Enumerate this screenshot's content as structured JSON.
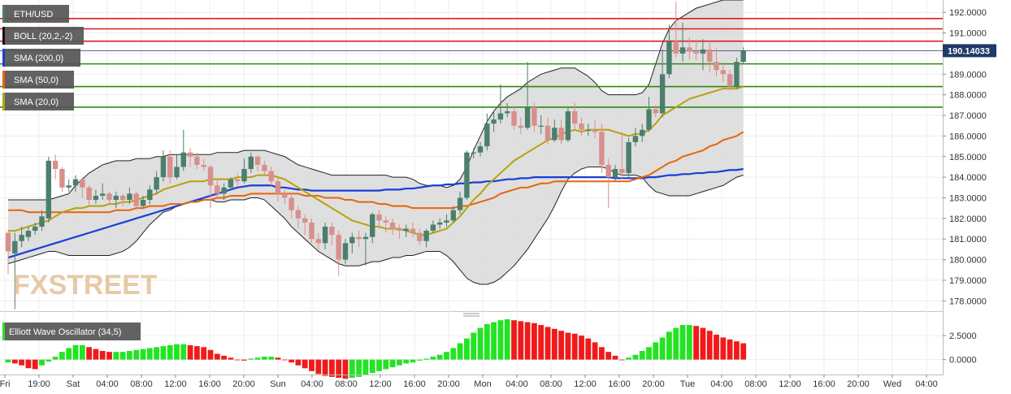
{
  "chart_data": {
    "type": "candlestick",
    "symbol": "ETH/USD",
    "legend": [
      {
        "label": "ETH/USD",
        "swatch": "#4a7f6e"
      },
      {
        "label": "BOLL (20,2,-2)",
        "swatch": "#111111"
      },
      {
        "label": "SMA (200,0)",
        "swatch": "#1a3fd6"
      },
      {
        "label": "SMA (50,0)",
        "swatch": "#e8650a"
      },
      {
        "label": "SMA (20,0)",
        "swatch": "#b8a10e"
      }
    ],
    "oscillator_label": "Elliott Wave Oscillator (34,5)",
    "price_axis": {
      "ticks": [
        "192.0000",
        "191.0000",
        "190.0000",
        "189.0000",
        "188.0000",
        "187.0000",
        "186.0000",
        "185.0000",
        "184.0000",
        "183.0000",
        "182.0000",
        "181.0000",
        "180.0000",
        "179.0000",
        "178.0000"
      ],
      "range": [
        177.5,
        192.6
      ],
      "current": "190.14033",
      "current_value": 190.14
    },
    "osc_axis": {
      "ticks": [
        "2.5000",
        "0.0000"
      ],
      "range": [
        -1.3,
        4.2
      ]
    },
    "time_labels": [
      "Fri",
      "19:00",
      "Sat",
      "04:00",
      "08:00",
      "12:00",
      "16:00",
      "20:00",
      "Sun",
      "04:00",
      "08:00",
      "12:00",
      "16:00",
      "20:00",
      "Mon",
      "04:00",
      "08:00",
      "12:00",
      "16:00",
      "20:00",
      "Tue",
      "04:00",
      "08:00",
      "12:00",
      "16:00",
      "20:00",
      "Wed",
      "04:00"
    ],
    "watermark": "FXSTREET",
    "resistance_levels": [
      191.7,
      191.2,
      190.6
    ],
    "support_levels": [
      189.5,
      188.4,
      187.4
    ],
    "colors": {
      "up": "#4a7f6e",
      "down": "#d98f8b",
      "resistance": "#e01b1b",
      "support": "#2d8a12",
      "band_fill": "#dcdcdc",
      "band_edge": "#222222",
      "sma200": "#1a3fd6",
      "sma50": "#e8650a",
      "sma20": "#b8a10e",
      "osc_pos": "#22e422",
      "osc_neg": "#f01a1a"
    },
    "candles": [
      [
        181.3,
        180.4,
        181.4,
        179.3
      ],
      [
        180.3,
        180.9,
        181.3,
        177.6
      ],
      [
        180.9,
        181.2,
        181.6,
        180.6
      ],
      [
        181.1,
        181.4,
        181.6,
        180.9
      ],
      [
        181.4,
        181.6,
        181.8,
        181.2
      ],
      [
        181.6,
        182.1,
        182.4,
        181.4
      ],
      [
        182.0,
        184.8,
        185.0,
        181.8
      ],
      [
        184.8,
        184.4,
        185.1,
        183.9
      ],
      [
        184.4,
        183.5,
        184.5,
        183.3
      ],
      [
        183.5,
        183.6,
        183.9,
        183.3
      ],
      [
        183.6,
        183.9,
        184.1,
        183.3
      ],
      [
        183.9,
        183.5,
        184.0,
        183.0
      ],
      [
        183.5,
        182.9,
        183.6,
        182.6
      ],
      [
        182.9,
        183.1,
        183.4,
        182.7
      ],
      [
        183.1,
        183.2,
        183.7,
        182.9
      ],
      [
        183.2,
        182.9,
        183.3,
        182.7
      ],
      [
        182.9,
        183.1,
        183.3,
        182.5
      ],
      [
        183.1,
        182.9,
        183.2,
        182.6
      ],
      [
        182.9,
        183.2,
        183.5,
        182.7
      ],
      [
        183.2,
        182.6,
        183.3,
        182.4
      ],
      [
        182.6,
        182.9,
        183.1,
        182.5
      ],
      [
        182.9,
        183.4,
        183.6,
        182.7
      ],
      [
        183.4,
        184.0,
        184.3,
        183.2
      ],
      [
        184.0,
        185.0,
        185.3,
        183.8
      ],
      [
        185.0,
        184.0,
        185.3,
        183.7
      ],
      [
        184.0,
        184.5,
        185.1,
        183.9
      ],
      [
        184.5,
        185.2,
        186.3,
        184.3
      ],
      [
        185.2,
        185.0,
        185.4,
        184.5
      ],
      [
        185.0,
        184.6,
        185.2,
        184.4
      ],
      [
        184.6,
        184.5,
        184.9,
        184.3
      ],
      [
        184.5,
        183.6,
        184.6,
        182.5
      ],
      [
        183.6,
        183.2,
        183.9,
        183.0
      ],
      [
        183.2,
        183.5,
        183.7,
        182.9
      ],
      [
        183.5,
        183.9,
        184.0,
        183.4
      ],
      [
        183.9,
        183.8,
        184.2,
        183.6
      ],
      [
        183.8,
        184.4,
        184.9,
        183.7
      ],
      [
        184.4,
        185.0,
        185.2,
        184.2
      ],
      [
        185.0,
        184.6,
        185.1,
        184.3
      ],
      [
        184.6,
        184.3,
        184.8,
        184.1
      ],
      [
        184.3,
        183.8,
        184.5,
        183.6
      ],
      [
        183.8,
        183.2,
        184.0,
        182.8
      ],
      [
        183.2,
        183.0,
        183.4,
        182.7
      ],
      [
        183.0,
        182.4,
        183.2,
        182.0
      ],
      [
        182.4,
        182.0,
        182.6,
        181.5
      ],
      [
        182.0,
        181.8,
        182.2,
        181.2
      ],
      [
        181.8,
        181.0,
        182.0,
        180.8
      ],
      [
        181.0,
        180.8,
        181.3,
        180.5
      ],
      [
        180.8,
        181.6,
        181.8,
        180.5
      ],
      [
        181.6,
        181.2,
        181.8,
        180.7
      ],
      [
        181.2,
        180.0,
        181.4,
        179.2
      ],
      [
        180.0,
        180.8,
        181.0,
        179.8
      ],
      [
        180.8,
        181.1,
        181.3,
        180.3
      ],
      [
        181.1,
        181.0,
        181.4,
        180.6
      ],
      [
        181.0,
        181.1,
        181.3,
        179.7
      ],
      [
        181.1,
        182.2,
        182.3,
        180.8
      ],
      [
        182.2,
        181.9,
        182.4,
        181.5
      ],
      [
        181.9,
        181.8,
        182.1,
        181.3
      ],
      [
        181.8,
        181.5,
        182.0,
        181.2
      ],
      [
        181.5,
        181.4,
        181.7,
        181.0
      ],
      [
        181.4,
        181.5,
        181.7,
        181.1
      ],
      [
        181.5,
        181.3,
        181.8,
        181.1
      ],
      [
        181.3,
        180.9,
        181.5,
        180.7
      ],
      [
        180.9,
        181.4,
        181.5,
        180.6
      ],
      [
        181.4,
        181.7,
        181.9,
        181.3
      ],
      [
        181.7,
        181.8,
        182.0,
        181.5
      ],
      [
        181.8,
        181.9,
        182.2,
        181.6
      ],
      [
        181.9,
        182.4,
        182.6,
        181.8
      ],
      [
        182.4,
        183.0,
        183.3,
        182.2
      ],
      [
        183.0,
        185.2,
        185.3,
        182.9
      ],
      [
        185.2,
        185.2,
        185.4,
        184.9
      ],
      [
        185.2,
        185.5,
        185.7,
        185.0
      ],
      [
        185.5,
        186.6,
        187.1,
        185.3
      ],
      [
        186.6,
        186.8,
        187.2,
        186.2
      ],
      [
        186.8,
        187.1,
        188.5,
        186.6
      ],
      [
        187.1,
        187.2,
        187.6,
        186.9
      ],
      [
        187.2,
        186.5,
        187.4,
        186.3
      ],
      [
        186.5,
        186.4,
        186.9,
        186.1
      ],
      [
        186.4,
        187.4,
        189.6,
        186.3
      ],
      [
        187.4,
        186.5,
        187.6,
        186.2
      ],
      [
        186.5,
        186.5,
        187.0,
        186.1
      ],
      [
        186.5,
        185.8,
        186.9,
        185.6
      ],
      [
        185.8,
        186.4,
        186.8,
        185.7
      ],
      [
        186.4,
        185.8,
        186.8,
        185.6
      ],
      [
        185.8,
        187.2,
        187.4,
        185.7
      ],
      [
        187.2,
        186.6,
        187.6,
        186.3
      ],
      [
        186.6,
        186.3,
        186.9,
        186.0
      ],
      [
        186.3,
        186.3,
        186.6,
        186.0
      ],
      [
        186.3,
        186.2,
        186.8,
        185.9
      ],
      [
        186.2,
        184.6,
        186.6,
        184.2
      ],
      [
        184.6,
        184.0,
        184.9,
        182.5
      ],
      [
        184.0,
        184.4,
        184.6,
        183.8
      ],
      [
        184.4,
        184.2,
        186.2,
        183.9
      ],
      [
        184.2,
        185.7,
        185.9,
        184.0
      ],
      [
        185.7,
        186.0,
        186.4,
        185.5
      ],
      [
        186.0,
        186.3,
        186.6,
        185.7
      ],
      [
        186.3,
        187.3,
        187.9,
        186.2
      ],
      [
        187.3,
        187.1,
        187.5,
        186.9
      ],
      [
        187.1,
        189.0,
        190.2,
        186.9
      ],
      [
        189.0,
        190.6,
        191.4,
        188.8
      ],
      [
        190.6,
        190.0,
        192.5,
        189.8
      ],
      [
        190.0,
        190.3,
        191.5,
        189.6
      ],
      [
        190.3,
        190.1,
        190.8,
        189.7
      ],
      [
        190.1,
        190.0,
        190.7,
        189.7
      ],
      [
        190.0,
        190.2,
        190.7,
        189.2
      ],
      [
        190.2,
        189.6,
        190.6,
        189.1
      ],
      [
        189.6,
        189.2,
        190.3,
        188.9
      ],
      [
        189.2,
        189.0,
        189.6,
        188.6
      ],
      [
        189.0,
        188.4,
        189.2,
        188.2
      ],
      [
        188.4,
        189.6,
        189.8,
        188.3
      ],
      [
        189.6,
        190.14,
        190.3,
        189.5
      ]
    ],
    "boll_upper": [
      182.9,
      182.9,
      182.9,
      182.9,
      182.9,
      182.9,
      182.9,
      183.0,
      183.1,
      183.2,
      183.6,
      183.9,
      184.2,
      184.4,
      184.6,
      184.7,
      184.8,
      184.8,
      184.8,
      184.9,
      184.9,
      184.9,
      185.0,
      185.0,
      185.1,
      185.1,
      185.1,
      185.1,
      185.1,
      185.1,
      185.1,
      185.2,
      185.2,
      185.2,
      185.2,
      185.3,
      185.3,
      185.3,
      185.3,
      185.2,
      185.1,
      185.0,
      184.8,
      184.6,
      184.5,
      184.4,
      184.3,
      184.2,
      184.1,
      184.1,
      184.1,
      184.1,
      184.1,
      184.1,
      184.1,
      184.1,
      184.1,
      184.0,
      184.0,
      184.0,
      183.9,
      183.7,
      183.6,
      183.6,
      183.6,
      183.5,
      183.6,
      183.9,
      184.5,
      185.3,
      186.0,
      186.7,
      187.2,
      187.6,
      187.9,
      188.1,
      188.3,
      188.6,
      188.8,
      189.0,
      189.1,
      189.2,
      189.3,
      189.3,
      189.3,
      189.1,
      188.9,
      188.6,
      188.2,
      188.0,
      188.0,
      188.0,
      188.0,
      188.0,
      188.1,
      188.5,
      189.5,
      190.5,
      191.2,
      191.6,
      191.8,
      192.0,
      192.2,
      192.3,
      192.4,
      192.5,
      192.6,
      192.6,
      192.6,
      192.6
    ],
    "boll_lower": [
      179.8,
      179.9,
      180.0,
      180.1,
      180.2,
      180.3,
      180.4,
      180.4,
      180.3,
      180.2,
      180.2,
      180.2,
      180.2,
      180.2,
      180.2,
      180.2,
      180.3,
      180.4,
      180.6,
      180.9,
      181.3,
      181.7,
      182.0,
      182.3,
      182.4,
      182.6,
      182.7,
      182.8,
      182.9,
      182.9,
      182.9,
      182.8,
      182.8,
      182.9,
      182.9,
      182.9,
      183.0,
      183.0,
      182.9,
      182.6,
      182.3,
      182.0,
      181.6,
      181.3,
      181.0,
      180.7,
      180.4,
      180.2,
      180.0,
      179.8,
      179.7,
      179.7,
      179.7,
      179.8,
      179.9,
      179.9,
      180.0,
      180.1,
      180.1,
      180.2,
      180.2,
      180.3,
      180.4,
      180.4,
      180.4,
      180.2,
      179.9,
      179.5,
      179.1,
      178.9,
      178.8,
      178.8,
      178.9,
      179.1,
      179.4,
      179.7,
      180.1,
      180.5,
      181.0,
      181.5,
      182.0,
      182.6,
      183.3,
      183.9,
      184.2,
      184.4,
      184.5,
      184.5,
      184.5,
      184.4,
      184.2,
      184.1,
      184.1,
      184.1,
      184.0,
      183.6,
      183.3,
      183.2,
      183.1,
      183.1,
      183.1,
      183.1,
      183.2,
      183.3,
      183.4,
      183.5,
      183.6,
      183.8,
      184.0,
      184.1
    ],
    "sma20": [
      181.4,
      181.4,
      181.5,
      181.6,
      181.7,
      181.8,
      181.9,
      182.1,
      182.3,
      182.4,
      182.5,
      182.5,
      182.6,
      182.6,
      182.6,
      182.7,
      182.7,
      182.8,
      182.8,
      182.9,
      183.0,
      183.1,
      183.2,
      183.4,
      183.5,
      183.6,
      183.7,
      183.8,
      183.8,
      183.8,
      183.9,
      183.9,
      183.9,
      183.9,
      184.0,
      184.0,
      184.0,
      184.1,
      184.1,
      184.1,
      184.0,
      183.9,
      183.7,
      183.5,
      183.3,
      183.1,
      182.9,
      182.7,
      182.5,
      182.3,
      182.1,
      181.9,
      181.8,
      181.7,
      181.6,
      181.6,
      181.5,
      181.5,
      181.5,
      181.4,
      181.3,
      181.2,
      181.2,
      181.3,
      181.4,
      181.5,
      181.8,
      182.1,
      182.5,
      182.9,
      183.2,
      183.6,
      183.9,
      184.2,
      184.5,
      184.8,
      185.0,
      185.2,
      185.4,
      185.6,
      185.8,
      185.9,
      186.1,
      186.2,
      186.3,
      186.2,
      186.3,
      186.3,
      186.3,
      186.3,
      186.2,
      186.1,
      186.0,
      186.1,
      186.1,
      186.3,
      186.6,
      187.0,
      187.2,
      187.4,
      187.6,
      187.8,
      187.9,
      188.0,
      188.1,
      188.2,
      188.3,
      188.3,
      188.3,
      188.4
    ],
    "sma50": [
      182.4,
      182.4,
      182.4,
      182.3,
      182.3,
      182.3,
      182.3,
      182.3,
      182.3,
      182.3,
      182.3,
      182.3,
      182.3,
      182.3,
      182.3,
      182.3,
      182.4,
      182.4,
      182.4,
      182.5,
      182.5,
      182.6,
      182.6,
      182.6,
      182.7,
      182.7,
      182.7,
      182.8,
      182.8,
      182.9,
      182.9,
      183.0,
      183.0,
      183.1,
      183.1,
      183.1,
      183.2,
      183.2,
      183.2,
      183.2,
      183.2,
      183.2,
      183.2,
      183.2,
      183.1,
      183.1,
      183.1,
      183.0,
      183.0,
      183.0,
      182.9,
      182.9,
      182.8,
      182.8,
      182.8,
      182.7,
      182.7,
      182.6,
      182.6,
      182.6,
      182.5,
      182.5,
      182.5,
      182.5,
      182.5,
      182.5,
      182.5,
      182.6,
      182.6,
      182.7,
      182.8,
      182.9,
      183.0,
      183.2,
      183.3,
      183.4,
      183.5,
      183.5,
      183.6,
      183.7,
      183.7,
      183.8,
      183.8,
      183.8,
      183.8,
      183.8,
      183.8,
      183.8,
      183.8,
      183.8,
      183.8,
      183.8,
      183.8,
      183.9,
      184.0,
      184.1,
      184.3,
      184.5,
      184.7,
      184.8,
      185.0,
      185.1,
      185.2,
      185.3,
      185.5,
      185.6,
      185.8,
      185.9,
      186.0,
      186.2
    ],
    "sma200": [
      180.1,
      180.2,
      180.3,
      180.4,
      180.5,
      180.6,
      180.7,
      180.8,
      180.9,
      181.0,
      181.1,
      181.2,
      181.3,
      181.4,
      181.5,
      181.6,
      181.7,
      181.8,
      181.9,
      182.0,
      182.1,
      182.2,
      182.3,
      182.4,
      182.5,
      182.6,
      182.7,
      182.8,
      182.9,
      183.0,
      183.1,
      183.2,
      183.3,
      183.4,
      183.5,
      183.55,
      183.6,
      183.6,
      183.6,
      183.6,
      183.5,
      183.5,
      183.45,
      183.4,
      183.4,
      183.35,
      183.35,
      183.35,
      183.35,
      183.35,
      183.35,
      183.35,
      183.35,
      183.35,
      183.35,
      183.35,
      183.4,
      183.4,
      183.4,
      183.45,
      183.45,
      183.5,
      183.55,
      183.6,
      183.6,
      183.65,
      183.65,
      183.7,
      183.7,
      183.75,
      183.75,
      183.8,
      183.8,
      183.85,
      183.9,
      183.9,
      183.95,
      183.95,
      184.0,
      184.0,
      184.0,
      184.0,
      184.0,
      184.0,
      184.0,
      184.0,
      184.0,
      184.0,
      184.0,
      184.0,
      183.95,
      183.95,
      183.95,
      183.95,
      183.95,
      184.0,
      184.0,
      184.05,
      184.1,
      184.1,
      184.15,
      184.15,
      184.2,
      184.2,
      184.25,
      184.25,
      184.3,
      184.35,
      184.35,
      184.4
    ],
    "ewo": [
      -0.3,
      -0.4,
      -0.6,
      -0.9,
      -1.0,
      -0.6,
      -0.2,
      0.3,
      0.8,
      1.2,
      1.5,
      1.5,
      1.3,
      1.1,
      0.9,
      0.8,
      0.8,
      0.8,
      0.9,
      1.0,
      1.1,
      1.2,
      1.3,
      1.4,
      1.5,
      1.6,
      1.6,
      1.5,
      1.4,
      1.3,
      1.0,
      0.6,
      0.4,
      0.2,
      0.0,
      -0.1,
      0.1,
      0.2,
      0.3,
      0.3,
      0.2,
      0.0,
      -0.3,
      -0.6,
      -0.9,
      -1.2,
      -1.5,
      -1.7,
      -1.8,
      -1.9,
      -2.0,
      -1.9,
      -1.8,
      -1.6,
      -1.4,
      -1.2,
      -1.0,
      -0.8,
      -0.6,
      -0.4,
      -0.3,
      -0.1,
      0.1,
      0.3,
      0.5,
      0.8,
      1.2,
      1.7,
      2.2,
      2.8,
      3.3,
      3.7,
      3.9,
      4.1,
      4.2,
      4.1,
      4.0,
      3.9,
      3.8,
      3.6,
      3.4,
      3.2,
      3.0,
      2.8,
      2.7,
      2.5,
      2.2,
      1.8,
      1.3,
      0.8,
      0.4,
      0.0,
      0.2,
      0.5,
      0.9,
      1.3,
      1.8,
      2.3,
      2.9,
      3.3,
      3.6,
      3.6,
      3.5,
      3.3,
      3.0,
      2.6,
      2.3,
      2.1,
      1.9,
      1.7
    ]
  }
}
